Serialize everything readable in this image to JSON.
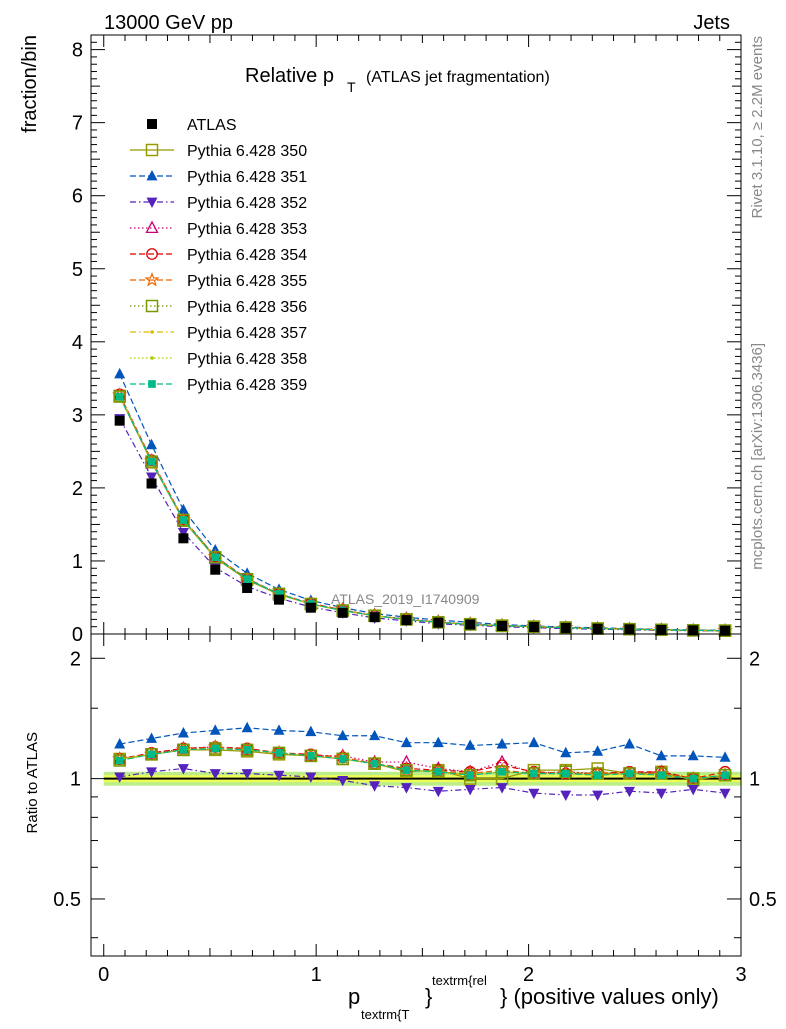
{
  "header": {
    "left": "13000 GeV pp",
    "right": "Jets"
  },
  "side_labels": {
    "rivet": "Rivet 3.1.10, ≥ 2.2M events",
    "mcplots": "mcplots.cern.ch [arXiv:1306.3436]"
  },
  "watermark": "ATLAS_2019_I1740909",
  "title": {
    "main": "Relative p",
    "sub": "T",
    "suffix": "(ATLAS jet fragmentation)"
  },
  "axes": {
    "ylabel_main": "fraction/bin",
    "ylabel_ratio": "Ratio to ATLAS",
    "xlabel_p": "p",
    "xlabel_sub": "textrm{T",
    "xlabel_sup": "textrm{rel",
    "xlabel_tail": "} (positive values only)"
  },
  "chart_data": [
    {
      "type": "scatter",
      "title": "Relative pT (ATLAS jet fragmentation)",
      "xlim": [
        -0.06,
        3.0
      ],
      "ylim": [
        0,
        8.2
      ],
      "x_ticks": [
        {
          "v": 0,
          "label": "0"
        },
        {
          "v": 1,
          "label": "1"
        },
        {
          "v": 2,
          "label": "2"
        },
        {
          "v": 3,
          "label": "3"
        }
      ],
      "y_ticks": [
        {
          "v": 0,
          "label": "0"
        },
        {
          "v": 1,
          "label": "1"
        },
        {
          "v": 2,
          "label": "2"
        },
        {
          "v": 3,
          "label": "3"
        },
        {
          "v": 4,
          "label": "4"
        },
        {
          "v": 5,
          "label": "5"
        },
        {
          "v": 6,
          "label": "6"
        },
        {
          "v": 7,
          "label": "7"
        },
        {
          "v": 8,
          "label": "8"
        }
      ],
      "x": [
        0.075,
        0.225,
        0.375,
        0.525,
        0.675,
        0.825,
        0.975,
        1.125,
        1.275,
        1.425,
        1.575,
        1.725,
        1.875,
        2.025,
        2.175,
        2.325,
        2.475,
        2.625,
        2.775,
        2.925
      ],
      "series": [
        {
          "name": "ATLAS",
          "color": "#000000",
          "marker": "square-filled",
          "line": "none",
          "values": [
            2.92,
            2.06,
            1.31,
            0.88,
            0.63,
            0.47,
            0.36,
            0.29,
            0.23,
            0.19,
            0.155,
            0.13,
            0.11,
            0.095,
            0.083,
            0.072,
            0.064,
            0.056,
            0.05,
            0.045
          ]
        },
        {
          "name": "Pythia 6.428 350",
          "color": "#999900",
          "marker": "square-open",
          "line": "solid",
          "values": [
            3.26,
            2.35,
            1.55,
            1.04,
            0.74,
            0.54,
            0.41,
            0.32,
            0.25,
            0.2,
            0.16,
            0.13,
            0.11,
            0.1,
            0.087,
            0.074,
            0.066,
            0.058,
            0.05,
            0.046
          ]
        },
        {
          "name": "Pythia 6.428 351",
          "color": "#0055bb",
          "marker": "triangle-up-filled",
          "line": "dashed",
          "values": [
            3.56,
            2.59,
            1.7,
            1.15,
            0.83,
            0.61,
            0.46,
            0.36,
            0.28,
            0.23,
            0.19,
            0.16,
            0.13,
            0.11,
            0.095,
            0.084,
            0.074,
            0.063,
            0.056,
            0.05
          ]
        },
        {
          "name": "Pythia 6.428 352",
          "color": "#5522bb",
          "marker": "triangle-down-filled",
          "line": "dashdot",
          "values": [
            2.95,
            2.15,
            1.39,
            0.91,
            0.65,
            0.49,
            0.37,
            0.29,
            0.22,
            0.18,
            0.14,
            0.12,
            0.1,
            0.085,
            0.075,
            0.065,
            0.058,
            0.05,
            0.045,
            0.04
          ]
        },
        {
          "name": "Pythia 6.428 353",
          "color": "#cc0077",
          "marker": "triangle-up-open",
          "line": "dotted",
          "values": [
            3.27,
            2.37,
            1.57,
            1.06,
            0.75,
            0.55,
            0.41,
            0.33,
            0.25,
            0.21,
            0.165,
            0.135,
            0.115,
            0.1,
            0.087,
            0.075,
            0.066,
            0.058,
            0.05,
            0.046
          ]
        },
        {
          "name": "Pythia 6.428 354",
          "color": "#dd0000",
          "marker": "circle-open",
          "line": "dashed",
          "values": [
            3.28,
            2.38,
            1.57,
            1.06,
            0.76,
            0.55,
            0.42,
            0.33,
            0.25,
            0.2,
            0.16,
            0.135,
            0.115,
            0.1,
            0.087,
            0.075,
            0.066,
            0.058,
            0.05,
            0.047
          ]
        },
        {
          "name": "Pythia 6.428 355",
          "color": "#ee6600",
          "marker": "star-open",
          "line": "dashed",
          "values": [
            3.27,
            2.37,
            1.56,
            1.06,
            0.75,
            0.55,
            0.41,
            0.33,
            0.25,
            0.2,
            0.16,
            0.135,
            0.115,
            0.1,
            0.087,
            0.075,
            0.066,
            0.058,
            0.05,
            0.046
          ]
        },
        {
          "name": "Pythia 6.428 356",
          "color": "#779900",
          "marker": "square-open",
          "line": "dotted",
          "values": [
            3.25,
            2.36,
            1.56,
            1.05,
            0.75,
            0.55,
            0.41,
            0.32,
            0.25,
            0.2,
            0.16,
            0.135,
            0.115,
            0.1,
            0.088,
            0.075,
            0.066,
            0.058,
            0.05,
            0.046
          ]
        },
        {
          "name": "Pythia 6.428 357",
          "color": "#ddbb00",
          "marker": "dot",
          "line": "dashdot",
          "values": [
            3.26,
            2.36,
            1.56,
            1.05,
            0.75,
            0.55,
            0.41,
            0.32,
            0.25,
            0.2,
            0.16,
            0.13,
            0.115,
            0.1,
            0.087,
            0.074,
            0.066,
            0.057,
            0.05,
            0.046
          ]
        },
        {
          "name": "Pythia 6.428 358",
          "color": "#aacc00",
          "marker": "dot",
          "line": "dotted",
          "values": [
            3.26,
            2.36,
            1.56,
            1.05,
            0.75,
            0.55,
            0.41,
            0.32,
            0.25,
            0.2,
            0.16,
            0.13,
            0.115,
            0.1,
            0.087,
            0.074,
            0.066,
            0.057,
            0.05,
            0.046
          ]
        },
        {
          "name": "Pythia 6.428 359",
          "color": "#00bb88",
          "marker": "square-filled-small",
          "line": "dashed",
          "values": [
            3.25,
            2.36,
            1.56,
            1.05,
            0.75,
            0.55,
            0.41,
            0.32,
            0.25,
            0.2,
            0.16,
            0.13,
            0.115,
            0.1,
            0.087,
            0.074,
            0.066,
            0.057,
            0.05,
            0.046
          ]
        }
      ]
    },
    {
      "type": "scatter",
      "title": "Ratio to ATLAS",
      "xlim": [
        -0.06,
        3.0
      ],
      "ylim": [
        0.36,
        2.3
      ],
      "y_scale": "log",
      "y_ticks": [
        {
          "v": 0.5,
          "label": "0.5"
        },
        {
          "v": 1,
          "label": "1"
        },
        {
          "v": 2,
          "label": "2"
        }
      ],
      "x": [
        0.075,
        0.225,
        0.375,
        0.525,
        0.675,
        0.825,
        0.975,
        1.125,
        1.275,
        1.425,
        1.575,
        1.725,
        1.875,
        2.025,
        2.175,
        2.325,
        2.475,
        2.625,
        2.775,
        2.925
      ],
      "reference_band": {
        "color_inner": "#eeff55",
        "color_outer": "#bbee88",
        "values": [
          0.04,
          0.04,
          0.04,
          0.04,
          0.04,
          0.04,
          0.04,
          0.04,
          0.04,
          0.04,
          0.04,
          0.04,
          0.04,
          0.04,
          0.04,
          0.04,
          0.04,
          0.04,
          0.04,
          0.04
        ]
      },
      "series": [
        {
          "name": "Pythia 6.428 350",
          "color": "#999900",
          "marker": "square-open",
          "line": "solid",
          "values": [
            1.12,
            1.15,
            1.18,
            1.18,
            1.17,
            1.15,
            1.14,
            1.12,
            1.09,
            1.04,
            1.05,
            1.0,
            1.0,
            1.05,
            1.05,
            1.06,
            1.03,
            1.04,
            0.99,
            1.02
          ]
        },
        {
          "name": "Pythia 6.428 351",
          "color": "#0055bb",
          "marker": "triangle-up-filled",
          "line": "dashed",
          "values": [
            1.22,
            1.26,
            1.3,
            1.32,
            1.34,
            1.32,
            1.31,
            1.28,
            1.28,
            1.23,
            1.23,
            1.21,
            1.22,
            1.23,
            1.16,
            1.17,
            1.22,
            1.14,
            1.14,
            1.13
          ]
        },
        {
          "name": "Pythia 6.428 352",
          "color": "#5522bb",
          "marker": "triangle-down-filled",
          "line": "dashdot",
          "values": [
            1.01,
            1.04,
            1.06,
            1.03,
            1.03,
            1.02,
            1.01,
            0.99,
            0.96,
            0.95,
            0.93,
            0.94,
            0.95,
            0.92,
            0.91,
            0.91,
            0.93,
            0.92,
            0.94,
            0.92
          ]
        },
        {
          "name": "Pythia 6.428 353",
          "color": "#cc0077",
          "marker": "triangle-up-open",
          "line": "dotted",
          "values": [
            1.12,
            1.15,
            1.19,
            1.2,
            1.18,
            1.16,
            1.14,
            1.14,
            1.1,
            1.1,
            1.06,
            1.04,
            1.1,
            1.03,
            1.04,
            1.03,
            1.03,
            1.04,
            1.0,
            1.02
          ]
        },
        {
          "name": "Pythia 6.428 354",
          "color": "#dd0000",
          "marker": "circle-open",
          "line": "dashed",
          "values": [
            1.12,
            1.16,
            1.19,
            1.2,
            1.19,
            1.16,
            1.15,
            1.13,
            1.09,
            1.06,
            1.05,
            1.04,
            1.08,
            1.04,
            1.03,
            1.03,
            1.04,
            1.04,
            1.0,
            1.04
          ]
        },
        {
          "name": "Pythia 6.428 355",
          "color": "#ee6600",
          "marker": "star-open",
          "line": "dashed",
          "values": [
            1.12,
            1.15,
            1.18,
            1.2,
            1.18,
            1.16,
            1.14,
            1.13,
            1.09,
            1.05,
            1.04,
            1.03,
            1.05,
            1.03,
            1.03,
            1.03,
            1.03,
            1.03,
            1.0,
            1.02
          ]
        },
        {
          "name": "Pythia 6.428 356",
          "color": "#779900",
          "marker": "square-open",
          "line": "dotted",
          "values": [
            1.11,
            1.15,
            1.18,
            1.19,
            1.18,
            1.16,
            1.14,
            1.12,
            1.09,
            1.05,
            1.04,
            1.02,
            1.04,
            1.03,
            1.04,
            1.03,
            1.03,
            1.03,
            1.0,
            1.02
          ]
        },
        {
          "name": "Pythia 6.428 357",
          "color": "#ddbb00",
          "marker": "dot",
          "line": "dashdot",
          "values": [
            1.12,
            1.15,
            1.18,
            1.19,
            1.18,
            1.16,
            1.14,
            1.12,
            1.09,
            1.05,
            1.04,
            1.02,
            1.04,
            1.03,
            1.03,
            1.02,
            1.03,
            1.02,
            1.0,
            1.02
          ]
        },
        {
          "name": "Pythia 6.428 358",
          "color": "#aacc00",
          "marker": "dot",
          "line": "dotted",
          "values": [
            1.12,
            1.15,
            1.18,
            1.19,
            1.18,
            1.16,
            1.14,
            1.12,
            1.09,
            1.05,
            1.04,
            1.02,
            1.04,
            1.03,
            1.03,
            1.02,
            1.03,
            1.02,
            1.0,
            1.02
          ]
        },
        {
          "name": "Pythia 6.428 359",
          "color": "#00bb88",
          "marker": "square-filled-small",
          "line": "dashed",
          "values": [
            1.11,
            1.15,
            1.18,
            1.19,
            1.18,
            1.16,
            1.14,
            1.12,
            1.09,
            1.05,
            1.04,
            1.02,
            1.04,
            1.03,
            1.03,
            1.02,
            1.03,
            1.02,
            1.0,
            1.02
          ]
        }
      ]
    }
  ]
}
